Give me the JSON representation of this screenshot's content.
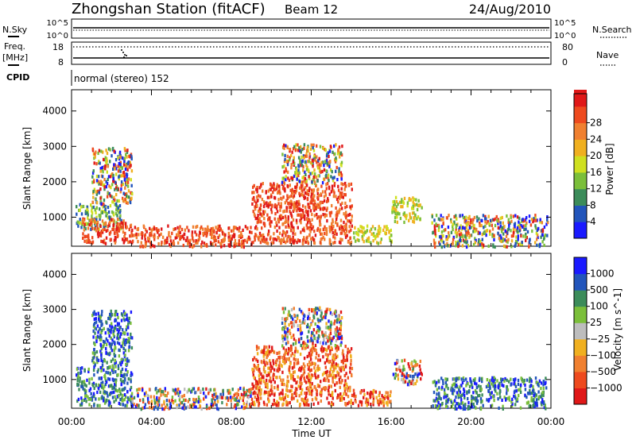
{
  "header": {
    "station": "Zhongshan Station (fitACF)",
    "beam": "Beam 12",
    "date": "24/Aug/2010"
  },
  "summary_panel": {
    "nsky_label": "N.Sky",
    "nsky_top": "10^5",
    "nsky_bottom": "10^0",
    "nsearch_label": "N.Search",
    "nsearch_top": "10^5",
    "nsearch_bottom": "10^0",
    "freq_label": "Freq.",
    "freq_unit": "[MHz]",
    "freq_top": "18",
    "freq_bottom": "8",
    "nave_label": "Nave",
    "nave_top": "80",
    "nave_bottom": "0",
    "cpid_label": "CPID",
    "cpid_value": "normal (stereo) 152"
  },
  "colors": {
    "power_scale": [
      "#1a1aff",
      "#2255bb",
      "#3c8c5a",
      "#7bbf3a",
      "#cfe020",
      "#f0b020",
      "#f08030",
      "#ee4a1e",
      "#e01818"
    ],
    "velocity_scale": [
      "#e01818",
      "#ee4a1e",
      "#f08030",
      "#f0b020",
      "#bdbdbd",
      "#7bbf3a",
      "#3c8c5a",
      "#2255bb",
      "#1a1aff"
    ]
  },
  "chart_data": [
    {
      "type": "heatmap",
      "title": "",
      "xlabel": "Time UT",
      "ylabel": "Slant Range [km]",
      "x_ticks": [
        "00:00",
        "04:00",
        "08:00",
        "12:00",
        "16:00",
        "20:00",
        "00:00"
      ],
      "xlim_hours": [
        0,
        24
      ],
      "y_ticks": [
        "1000",
        "2000",
        "3000",
        "4000"
      ],
      "ylim": [
        180,
        4600
      ],
      "colorbar_label": "Power [dB]",
      "colorbar_ticks": [
        "4",
        "8",
        "12",
        "16",
        "20",
        "24",
        "28"
      ],
      "colorbar_range": [
        0,
        30
      ],
      "scatter_regions": [
        {
          "t": [
            0.2,
            2.5
          ],
          "r": [
            700,
            1400
          ],
          "level": "low-mid"
        },
        {
          "t": [
            0.5,
            3.0
          ],
          "r": [
            300,
            1000
          ],
          "level": "high"
        },
        {
          "t": [
            1.0,
            3.0
          ],
          "r": [
            1400,
            3000
          ],
          "level": "mixed"
        },
        {
          "t": [
            3.0,
            9.0
          ],
          "r": [
            200,
            800
          ],
          "level": "high"
        },
        {
          "t": [
            9.0,
            14.0
          ],
          "r": [
            300,
            2000
          ],
          "level": "high"
        },
        {
          "t": [
            10.5,
            13.5
          ],
          "r": [
            2000,
            3100
          ],
          "level": "mixed"
        },
        {
          "t": [
            14.0,
            16.0
          ],
          "r": [
            300,
            800
          ],
          "level": "mid"
        },
        {
          "t": [
            16.0,
            17.5
          ],
          "r": [
            900,
            1600
          ],
          "level": "mid"
        },
        {
          "t": [
            18.0,
            23.8
          ],
          "r": [
            200,
            1100
          ],
          "level": "mixed"
        }
      ]
    },
    {
      "type": "heatmap",
      "title": "",
      "xlabel": "Time UT",
      "ylabel": "Slant Range [km]",
      "x_ticks": [
        "00:00",
        "04:00",
        "08:00",
        "12:00",
        "16:00",
        "20:00",
        "00:00"
      ],
      "xlim_hours": [
        0,
        24
      ],
      "y_ticks": [
        "1000",
        "2000",
        "3000",
        "4000"
      ],
      "ylim": [
        180,
        4600
      ],
      "colorbar_label": "Velocity [m s^-1]",
      "colorbar_ticks": [
        "1000",
        "500",
        "100",
        "25",
        "−25",
        "−100",
        "−500",
        "−1000"
      ],
      "colorbar_range": [
        -1000,
        1000
      ],
      "scatter_regions": [
        {
          "t": [
            0.2,
            3.0
          ],
          "r": [
            300,
            1400
          ],
          "level": "positive"
        },
        {
          "t": [
            1.0,
            3.0
          ],
          "r": [
            1400,
            3000
          ],
          "level": "positive"
        },
        {
          "t": [
            3.0,
            9.0
          ],
          "r": [
            200,
            800
          ],
          "level": "mixed"
        },
        {
          "t": [
            9.0,
            14.0
          ],
          "r": [
            300,
            2000
          ],
          "level": "negative"
        },
        {
          "t": [
            10.5,
            13.5
          ],
          "r": [
            2000,
            3100
          ],
          "level": "mixed"
        },
        {
          "t": [
            14.0,
            16.0
          ],
          "r": [
            300,
            800
          ],
          "level": "negative"
        },
        {
          "t": [
            16.0,
            17.5
          ],
          "r": [
            900,
            1600
          ],
          "level": "mixed"
        },
        {
          "t": [
            18.0,
            23.8
          ],
          "r": [
            200,
            1100
          ],
          "level": "positive"
        }
      ]
    }
  ]
}
